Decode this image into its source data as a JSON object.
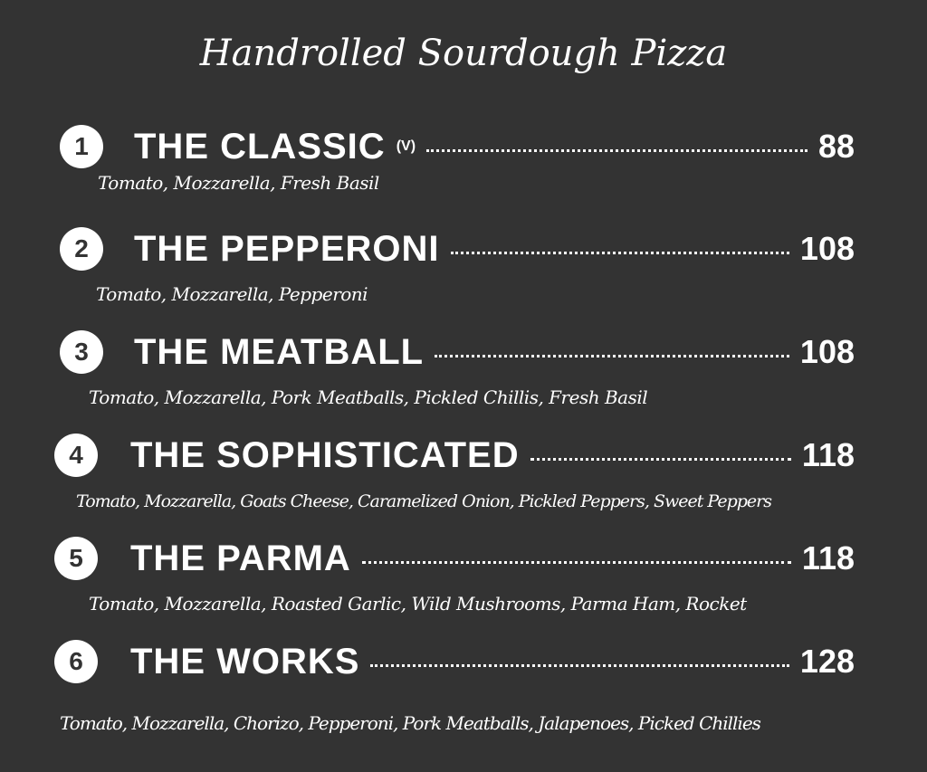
{
  "title": "Handrolled Sourdough Pizza",
  "items": [
    {
      "number": "1",
      "name": "THE CLASSIC",
      "tag": "(V)",
      "price": "88",
      "description": "Tomato, Mozzarella, Fresh Basil"
    },
    {
      "number": "2",
      "name": "THE PEPPERONI",
      "tag": "",
      "price": "108",
      "description": "Tomato, Mozzarella, Pepperoni"
    },
    {
      "number": "3",
      "name": "THE MEATBALL",
      "tag": "",
      "price": "108",
      "description": "Tomato, Mozzarella, Pork Meatballs, Pickled Chillis, Fresh Basil"
    },
    {
      "number": "4",
      "name": "THE SOPHISTICATED",
      "tag": "",
      "price": "118",
      "description": "Tomato, Mozzarella, Goats Cheese, Caramelized Onion, Pickled Peppers, Sweet Peppers"
    },
    {
      "number": "5",
      "name": "THE PARMA",
      "tag": "",
      "price": "118",
      "description": "Tomato, Mozzarella, Roasted Garlic, Wild Mushrooms, Parma Ham, Rocket"
    },
    {
      "number": "6",
      "name": "THE WORKS",
      "tag": "",
      "price": "128",
      "description": "Tomato, Mozzarella, Chorizo, Pepperoni, Pork Meatballs, Jalapenoes, Picked Chillies"
    }
  ]
}
